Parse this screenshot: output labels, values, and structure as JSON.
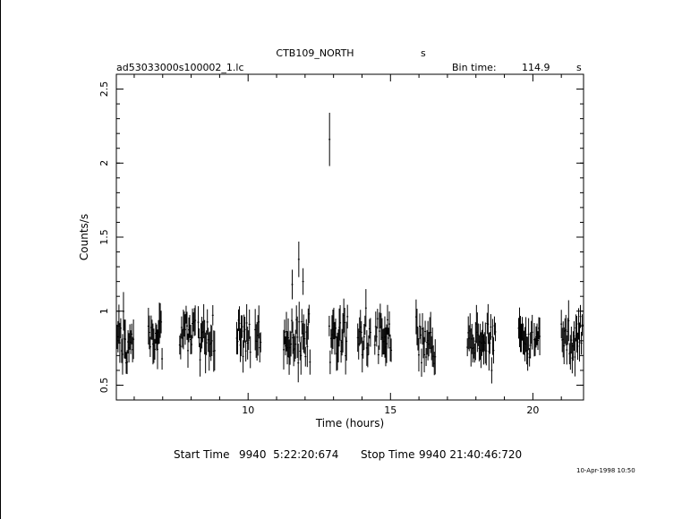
{
  "header": {
    "object": "CTB109_NORTH",
    "object_suffix": "s",
    "file": "ad53033000s100002_1.lc",
    "bin_label": "Bin time:",
    "bin_value": "114.9",
    "bin_unit": "s"
  },
  "footer": {
    "start_label": "Start Time",
    "start_value": "9940  5:22:20:674",
    "stop_label": "Stop Time",
    "stop_value": "9940 21:40:46:720",
    "stamp": "10-Apr-1998 10:50"
  },
  "chart_data": {
    "type": "scatter",
    "title": "CTB109_NORTH",
    "xlabel": "Time (hours)",
    "ylabel": "Counts/s",
    "xlim": [
      5.373,
      21.78
    ],
    "ylim": [
      0.4,
      2.6
    ],
    "grid": false,
    "xticks": [
      10,
      15,
      20
    ],
    "xtick_labels": [
      "10",
      "15",
      "20"
    ],
    "yticks": [
      0.5,
      1,
      1.5,
      2,
      2.5
    ],
    "ytick_labels": [
      "0.5",
      "1",
      "1.5",
      "2",
      "2.5"
    ],
    "groups": [
      {
        "start": 5.4,
        "end": 6.0
      },
      {
        "start": 6.5,
        "end": 7.0
      },
      {
        "start": 7.6,
        "end": 8.15
      },
      {
        "start": 8.25,
        "end": 8.85
      },
      {
        "start": 9.6,
        "end": 10.1
      },
      {
        "start": 10.25,
        "end": 10.45
      },
      {
        "start": 11.25,
        "end": 11.95
      },
      {
        "start": 11.95,
        "end": 12.2
      },
      {
        "start": 12.85,
        "end": 13.5
      },
      {
        "start": 13.85,
        "end": 14.3
      },
      {
        "start": 14.45,
        "end": 15.05
      },
      {
        "start": 15.9,
        "end": 16.6
      },
      {
        "start": 17.7,
        "end": 18.3
      },
      {
        "start": 18.3,
        "end": 18.7
      },
      {
        "start": 19.5,
        "end": 20.0
      },
      {
        "start": 20.05,
        "end": 20.25
      },
      {
        "start": 21.0,
        "end": 21.75
      }
    ],
    "group_mean": 0.82,
    "group_scatter": 0.1,
    "highlights": [
      {
        "x": 12.86,
        "y": 2.16,
        "err": 0.18
      },
      {
        "x": 11.78,
        "y": 1.35,
        "err": 0.12
      },
      {
        "x": 11.55,
        "y": 1.18,
        "err": 0.1
      },
      {
        "x": 11.93,
        "y": 1.2,
        "err": 0.09
      }
    ]
  }
}
